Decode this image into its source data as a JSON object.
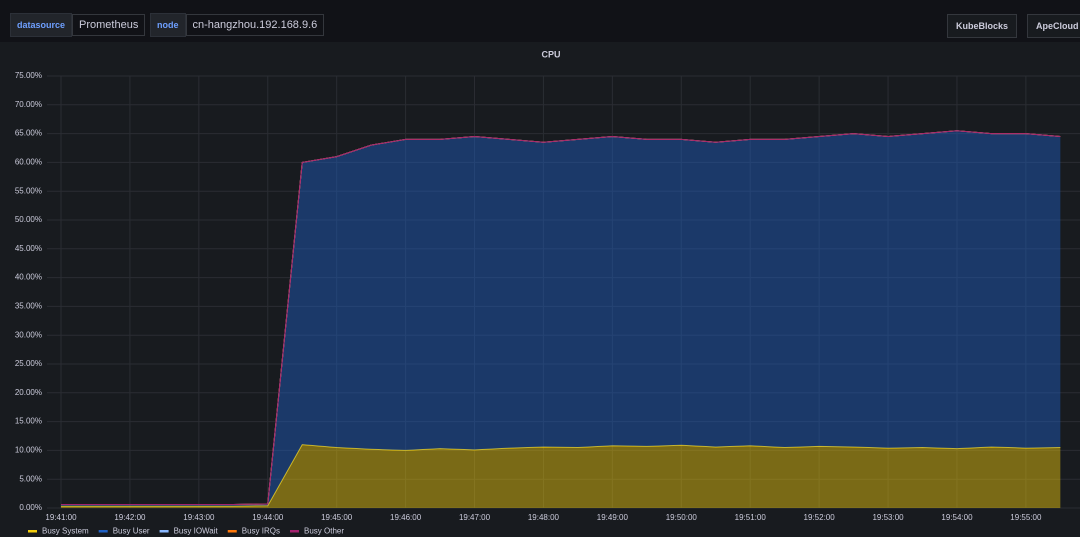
{
  "toolbar": {
    "datasource_label": "datasource",
    "datasource_value": "Prometheus",
    "node_label": "node",
    "node_value": "cn-hangzhou.192.168.9.6",
    "buttons": [
      "KubeBlocks",
      "ApeCloud"
    ]
  },
  "chart_data": {
    "type": "stacked-area",
    "title": "CPU",
    "categories": [
      "19:41:00",
      null,
      "19:42:00",
      null,
      "19:43:00",
      null,
      "19:44:00",
      null,
      "19:45:00",
      null,
      "19:46:00",
      null,
      "19:47:00",
      null,
      "19:48:00",
      null,
      "19:49:00",
      null,
      "19:50:00",
      null,
      "19:51:00",
      null,
      "19:52:00",
      null,
      "19:53:00",
      null,
      "19:54:00",
      null,
      "19:55:00",
      null
    ],
    "series": [
      {
        "name": "Busy System",
        "color": "#f2cc0c",
        "values": [
          0.3,
          0.3,
          0.3,
          0.3,
          0.3,
          0.3,
          0.4,
          11,
          10.5,
          10.2,
          10,
          10.3,
          10.1,
          10.4,
          10.6,
          10.5,
          10.8,
          10.7,
          10.9,
          10.6,
          10.8,
          10.5,
          10.7,
          10.6,
          10.4,
          10.5,
          10.3,
          10.6,
          10.4,
          10.5
        ]
      },
      {
        "name": "Busy User",
        "color": "#1f60c4",
        "values": [
          0.3,
          0.3,
          0.3,
          0.3,
          0.3,
          0.3,
          0.3,
          49,
          50.5,
          52.8,
          54,
          53.7,
          54.4,
          53.6,
          52.9,
          53.5,
          53.7,
          53.3,
          53.1,
          52.9,
          53.2,
          53.5,
          53.8,
          54.4,
          54.1,
          54.5,
          55.2,
          54.4,
          54.6,
          54
        ]
      },
      {
        "name": "Busy IOWait",
        "color": "#8ab8ff",
        "values": [
          0,
          0,
          0,
          0,
          0,
          0,
          0,
          0,
          0,
          0,
          0,
          0,
          0,
          0,
          0,
          0,
          0,
          0,
          0,
          0,
          0,
          0,
          0,
          0,
          0,
          0,
          0,
          0,
          0,
          0
        ]
      },
      {
        "name": "Busy IRQs",
        "color": "#ff780a",
        "values": [
          0,
          0,
          0,
          0,
          0,
          0,
          0,
          0,
          0,
          0,
          0,
          0,
          0,
          0,
          0,
          0,
          0,
          0,
          0,
          0,
          0,
          0,
          0,
          0,
          0,
          0,
          0,
          0,
          0,
          0
        ]
      },
      {
        "name": "Busy Other",
        "color": "#a3226e",
        "values": [
          0,
          0,
          0,
          0,
          0,
          0,
          0,
          0,
          0,
          0,
          0,
          0,
          0,
          0,
          0,
          0,
          0,
          0,
          0,
          0,
          0,
          0,
          0,
          0,
          0,
          0,
          0,
          0,
          0,
          0
        ]
      }
    ],
    "ylim": [
      0,
      75
    ],
    "yticks": [
      {
        "value": 0,
        "label": "0.00%"
      },
      {
        "value": 5,
        "label": "5.00%"
      },
      {
        "value": 10,
        "label": "10.00%"
      },
      {
        "value": 15,
        "label": "15.00%"
      },
      {
        "value": 20,
        "label": "20.00%"
      },
      {
        "value": 25,
        "label": "25.00%"
      },
      {
        "value": 30,
        "label": "30.00%"
      },
      {
        "value": 35,
        "label": "35.00%"
      },
      {
        "value": 40,
        "label": "40.00%"
      },
      {
        "value": 45,
        "label": "45.00%"
      },
      {
        "value": 50,
        "label": "50.00%"
      },
      {
        "value": 55,
        "label": "55.00%"
      },
      {
        "value": 60,
        "label": "60.00%"
      },
      {
        "value": 65,
        "label": "65.00%"
      },
      {
        "value": 70,
        "label": "70.00%"
      },
      {
        "value": 75,
        "label": "75.00%"
      }
    ],
    "grid": true,
    "legend": "bottom"
  }
}
